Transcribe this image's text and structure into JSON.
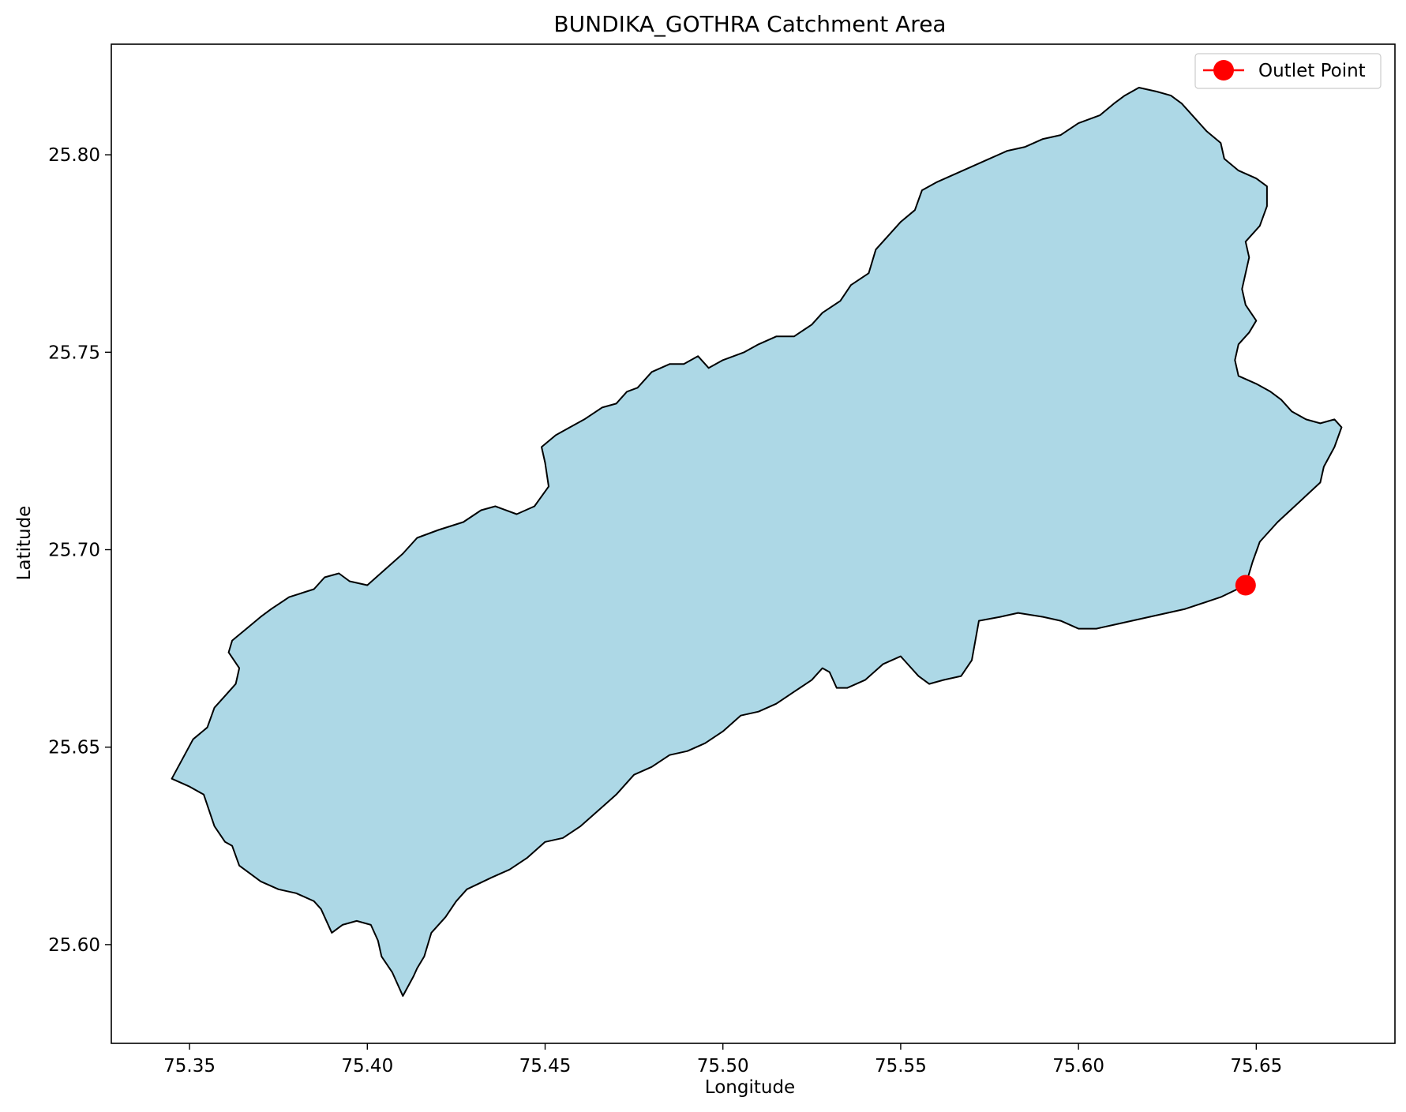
{
  "chart_data": {
    "type": "map",
    "title": "BUNDIKA_GOTHRA Catchment Area",
    "xlabel": "Longitude",
    "ylabel": "Latitude",
    "xlim": [
      75.328,
      75.689
    ],
    "ylim": [
      25.575,
      25.828
    ],
    "xticks": [
      75.35,
      75.4,
      75.45,
      75.5,
      75.55,
      75.6,
      75.65
    ],
    "xtick_labels": [
      "75.35",
      "75.40",
      "75.45",
      "75.50",
      "75.55",
      "75.60",
      "75.65"
    ],
    "yticks": [
      25.6,
      25.65,
      25.7,
      25.75,
      25.8
    ],
    "ytick_labels": [
      "25.60",
      "25.65",
      "25.70",
      "25.75",
      "25.80"
    ],
    "grid": false,
    "legend": {
      "placement": "top-right",
      "entries": [
        "Outlet Point"
      ]
    },
    "catchment": {
      "fill_color": "#add8e6",
      "edge_color": "#000000",
      "boundary": [
        [
          75.345,
          25.642
        ],
        [
          75.35,
          25.64
        ],
        [
          75.354,
          25.638
        ],
        [
          75.357,
          25.63
        ],
        [
          75.36,
          25.626
        ],
        [
          75.362,
          25.625
        ],
        [
          75.364,
          25.62
        ],
        [
          75.367,
          25.618
        ],
        [
          75.37,
          25.616
        ],
        [
          75.375,
          25.614
        ],
        [
          75.38,
          25.613
        ],
        [
          75.385,
          25.611
        ],
        [
          75.387,
          25.609
        ],
        [
          75.39,
          25.603
        ],
        [
          75.393,
          25.605
        ],
        [
          75.397,
          25.606
        ],
        [
          75.401,
          25.605
        ],
        [
          75.403,
          25.601
        ],
        [
          75.404,
          25.597
        ],
        [
          75.407,
          25.593
        ],
        [
          75.41,
          25.587
        ],
        [
          75.413,
          25.592
        ],
        [
          75.414,
          25.594
        ],
        [
          75.416,
          25.597
        ],
        [
          75.417,
          25.6
        ],
        [
          75.418,
          25.603
        ],
        [
          75.422,
          25.607
        ],
        [
          75.425,
          25.611
        ],
        [
          75.428,
          25.614
        ],
        [
          75.435,
          25.617
        ],
        [
          75.44,
          25.619
        ],
        [
          75.445,
          25.622
        ],
        [
          75.45,
          25.626
        ],
        [
          75.455,
          25.627
        ],
        [
          75.46,
          25.63
        ],
        [
          75.465,
          25.634
        ],
        [
          75.47,
          25.638
        ],
        [
          75.475,
          25.643
        ],
        [
          75.48,
          25.645
        ],
        [
          75.485,
          25.648
        ],
        [
          75.49,
          25.649
        ],
        [
          75.495,
          25.651
        ],
        [
          75.5,
          25.654
        ],
        [
          75.505,
          25.658
        ],
        [
          75.51,
          25.659
        ],
        [
          75.515,
          25.661
        ],
        [
          75.52,
          25.664
        ],
        [
          75.525,
          25.667
        ],
        [
          75.528,
          25.67
        ],
        [
          75.53,
          25.669
        ],
        [
          75.532,
          25.665
        ],
        [
          75.535,
          25.665
        ],
        [
          75.54,
          25.667
        ],
        [
          75.545,
          25.671
        ],
        [
          75.55,
          25.673
        ],
        [
          75.555,
          25.668
        ],
        [
          75.558,
          25.666
        ],
        [
          75.562,
          25.667
        ],
        [
          75.567,
          25.668
        ],
        [
          75.57,
          25.672
        ],
        [
          75.572,
          25.682
        ],
        [
          75.578,
          25.683
        ],
        [
          75.583,
          25.684
        ],
        [
          75.59,
          25.683
        ],
        [
          75.595,
          25.682
        ],
        [
          75.6,
          25.68
        ],
        [
          75.605,
          25.68
        ],
        [
          75.61,
          25.681
        ],
        [
          75.62,
          25.683
        ],
        [
          75.63,
          25.685
        ],
        [
          75.64,
          25.688
        ],
        [
          75.647,
          25.691
        ],
        [
          75.649,
          25.697
        ],
        [
          75.651,
          25.702
        ],
        [
          75.656,
          25.707
        ],
        [
          75.662,
          25.712
        ],
        [
          75.668,
          25.717
        ],
        [
          75.669,
          25.721
        ],
        [
          75.672,
          25.726
        ],
        [
          75.674,
          25.731
        ],
        [
          75.672,
          25.733
        ],
        [
          75.668,
          25.732
        ],
        [
          75.664,
          25.733
        ],
        [
          75.66,
          25.735
        ],
        [
          75.657,
          25.738
        ],
        [
          75.654,
          25.74
        ],
        [
          75.65,
          25.742
        ],
        [
          75.645,
          25.744
        ],
        [
          75.644,
          25.748
        ],
        [
          75.645,
          25.752
        ],
        [
          75.648,
          25.755
        ],
        [
          75.65,
          25.758
        ],
        [
          75.647,
          25.762
        ],
        [
          75.646,
          25.766
        ],
        [
          75.647,
          25.77
        ],
        [
          75.648,
          25.774
        ],
        [
          75.647,
          25.778
        ],
        [
          75.651,
          25.782
        ],
        [
          75.653,
          25.787
        ],
        [
          75.653,
          25.792
        ],
        [
          75.65,
          25.794
        ],
        [
          75.645,
          25.796
        ],
        [
          75.641,
          25.799
        ],
        [
          75.64,
          25.803
        ],
        [
          75.636,
          25.806
        ],
        [
          75.632,
          25.81
        ],
        [
          75.629,
          25.813
        ],
        [
          75.626,
          25.815
        ],
        [
          75.622,
          25.816
        ],
        [
          75.617,
          25.817
        ],
        [
          75.613,
          25.815
        ],
        [
          75.61,
          25.813
        ],
        [
          75.606,
          25.81
        ],
        [
          75.6,
          25.808
        ],
        [
          75.595,
          25.805
        ],
        [
          75.59,
          25.804
        ],
        [
          75.585,
          25.802
        ],
        [
          75.58,
          25.801
        ],
        [
          75.575,
          25.799
        ],
        [
          75.57,
          25.797
        ],
        [
          75.565,
          25.795
        ],
        [
          75.56,
          25.793
        ],
        [
          75.556,
          25.791
        ],
        [
          75.554,
          25.786
        ],
        [
          75.55,
          25.783
        ],
        [
          75.546,
          25.779
        ],
        [
          75.543,
          25.776
        ],
        [
          75.541,
          25.77
        ],
        [
          75.536,
          25.767
        ],
        [
          75.533,
          25.763
        ],
        [
          75.528,
          25.76
        ],
        [
          75.525,
          25.757
        ],
        [
          75.52,
          25.754
        ],
        [
          75.515,
          25.754
        ],
        [
          75.51,
          25.752
        ],
        [
          75.506,
          25.75
        ],
        [
          75.5,
          25.748
        ],
        [
          75.496,
          25.746
        ],
        [
          75.493,
          25.749
        ],
        [
          75.489,
          25.747
        ],
        [
          75.485,
          25.747
        ],
        [
          75.48,
          25.745
        ],
        [
          75.476,
          25.741
        ],
        [
          75.473,
          25.74
        ],
        [
          75.47,
          25.737
        ],
        [
          75.466,
          25.736
        ],
        [
          75.461,
          25.733
        ],
        [
          75.457,
          25.731
        ],
        [
          75.453,
          25.729
        ],
        [
          75.449,
          25.726
        ],
        [
          75.45,
          25.722
        ],
        [
          75.451,
          25.716
        ],
        [
          75.447,
          25.711
        ],
        [
          75.442,
          25.709
        ],
        [
          75.436,
          25.711
        ],
        [
          75.432,
          25.71
        ],
        [
          75.427,
          25.707
        ],
        [
          75.42,
          25.705
        ],
        [
          75.414,
          25.703
        ],
        [
          75.41,
          25.699
        ],
        [
          75.405,
          25.695
        ],
        [
          75.4,
          25.691
        ],
        [
          75.395,
          25.692
        ],
        [
          75.392,
          25.694
        ],
        [
          75.388,
          25.693
        ],
        [
          75.385,
          25.69
        ],
        [
          75.378,
          25.688
        ],
        [
          75.373,
          25.685
        ],
        [
          75.37,
          25.683
        ],
        [
          75.366,
          25.68
        ],
        [
          75.362,
          25.677
        ],
        [
          75.361,
          25.674
        ],
        [
          75.364,
          25.67
        ],
        [
          75.363,
          25.666
        ],
        [
          75.36,
          25.663
        ],
        [
          75.357,
          25.66
        ],
        [
          75.355,
          25.655
        ],
        [
          75.351,
          25.652
        ],
        [
          75.348,
          25.647
        ],
        [
          75.345,
          25.642
        ]
      ]
    },
    "outlet_point": {
      "label": "Outlet Point",
      "lon": 75.647,
      "lat": 25.691,
      "color": "#ff0000"
    }
  }
}
